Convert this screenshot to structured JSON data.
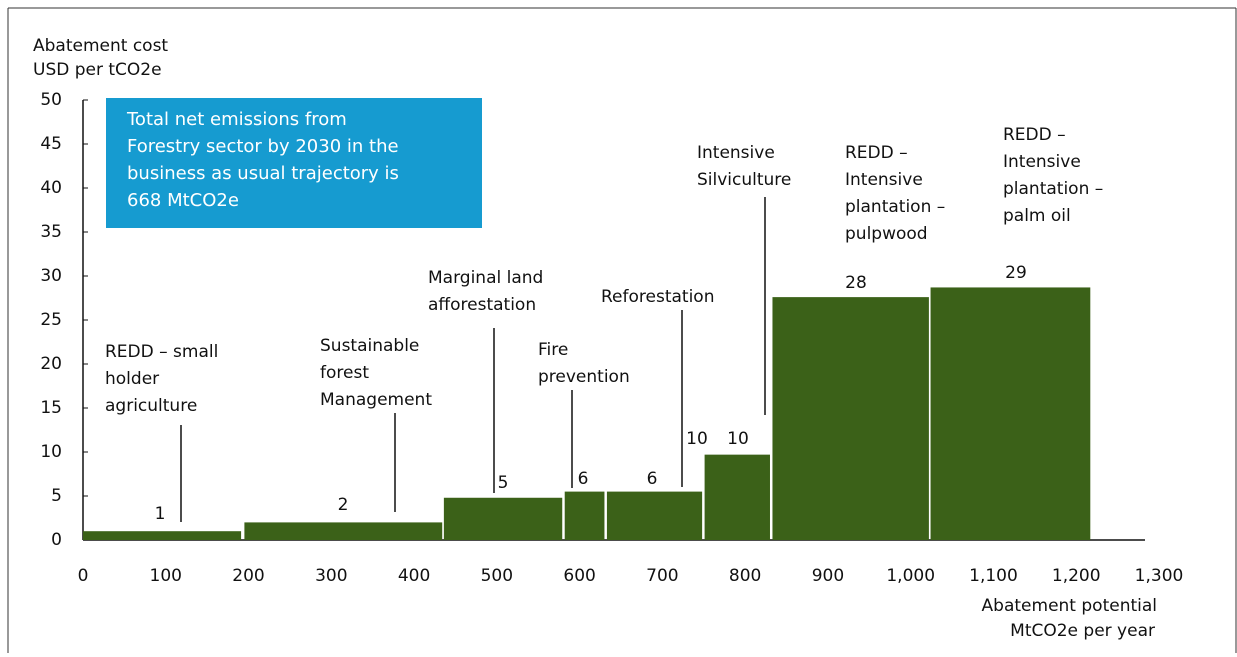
{
  "chart_data": {
    "type": "bar",
    "y_axis_label": [
      "Abatement cost",
      "USD per tCO2e"
    ],
    "x_axis_label": [
      "Abatement potential",
      "MtCO2e per year"
    ],
    "annotation_box": [
      "Total net emissions from",
      "Forestry sector by 2030 in the",
      "business as usual trajectory is",
      "668 MtCO2e"
    ],
    "categories": [
      [
        "REDD – small",
        "holder",
        "agriculture"
      ],
      [
        "Sustainable",
        "forest",
        "Management"
      ],
      [
        "Marginal land",
        "afforestation"
      ],
      [
        "Fire",
        "prevention"
      ],
      [
        "Reforestation"
      ],
      [
        "Intensive",
        "Silviculture"
      ],
      [
        "REDD –",
        "Intensive",
        "plantation –",
        "pulpwood"
      ],
      [
        "REDD –",
        "Intensive",
        "plantation –",
        "palm oil"
      ]
    ],
    "x_start": [
      0,
      195,
      436,
      582,
      633,
      751,
      833,
      1024
    ],
    "x_end": [
      191,
      434,
      579,
      630,
      748,
      830,
      1022,
      1217
    ],
    "values": [
      1,
      2,
      4.8,
      5.5,
      5.5,
      9.7,
      27.6,
      28.7
    ],
    "value_labels": [
      "1",
      "2",
      "5",
      "6",
      "6",
      "10",
      "28",
      "29"
    ],
    "extra_label": "10",
    "color": "#3b6118",
    "xlim": [
      0,
      1300
    ],
    "xticks": [
      0,
      100,
      200,
      300,
      400,
      500,
      600,
      700,
      800,
      900,
      {
        "value": 1000,
        "label": "1,000"
      },
      {
        "value": 1100,
        "label": "1,100"
      },
      {
        "value": 1200,
        "label": "1,200"
      },
      {
        "value": 1300,
        "label": "1,300"
      }
    ],
    "ylim": [
      0,
      50
    ],
    "yticks": [
      0,
      5,
      10,
      15,
      20,
      25,
      30,
      35,
      40,
      45,
      50
    ]
  }
}
